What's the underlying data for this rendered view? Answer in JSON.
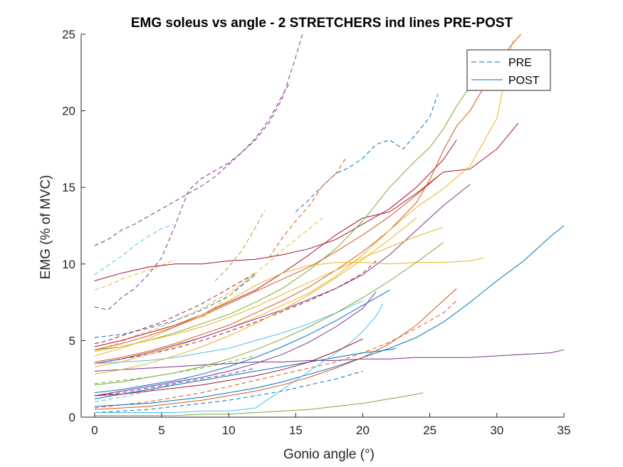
{
  "chart_data": {
    "type": "line",
    "title": "EMG soleus vs angle - 2 STRETCHERS ind lines PRE-POST",
    "xlabel": "Gonio angle (°)",
    "ylabel": "EMG (% of MVC)",
    "xlim": [
      -1,
      35
    ],
    "ylim": [
      0,
      25
    ],
    "xticks": [
      0,
      5,
      10,
      15,
      20,
      25,
      30,
      35
    ],
    "yticks": [
      0,
      5,
      10,
      15,
      20,
      25
    ],
    "grid": false,
    "legend": {
      "placement": "top-right",
      "entries": [
        {
          "label": "PRE",
          "style": "dashed",
          "color": "#0072BD"
        },
        {
          "label": "POST",
          "style": "solid",
          "color": "#0072BD"
        }
      ]
    },
    "series": [
      {
        "style": "dashed",
        "color": "#7E2F8E",
        "x": [
          0,
          1,
          2,
          3,
          4,
          5,
          6,
          7,
          8,
          9,
          10,
          11,
          12,
          13,
          14,
          15,
          15.5
        ],
        "y": [
          11.2,
          11.6,
          12.2,
          12.6,
          13.1,
          13.6,
          14.1,
          14.6,
          15.1,
          15.7,
          16.5,
          17.3,
          18.1,
          19.2,
          20.8,
          23.5,
          25
        ]
      },
      {
        "style": "dashed",
        "color": "#7E2F8E",
        "x": [
          0,
          1,
          2,
          3,
          4,
          5,
          6,
          7,
          8,
          9,
          10,
          11,
          12,
          13,
          14,
          14.6
        ],
        "y": [
          7.2,
          7.0,
          7.8,
          8.4,
          9.3,
          10.4,
          12.5,
          14.8,
          15.6,
          16.1,
          16.6,
          17.3,
          18.2,
          19.4,
          21.0,
          21.9
        ]
      },
      {
        "style": "dashed",
        "color": "#4DBEEE",
        "x": [
          0,
          1,
          2,
          3,
          4,
          5,
          5.9
        ],
        "y": [
          9.3,
          9.9,
          10.5,
          11.2,
          11.8,
          12.3,
          12.6
        ]
      },
      {
        "style": "dashed",
        "color": "#0072BD",
        "x": [
          15,
          16,
          17,
          18,
          19,
          20,
          21,
          22,
          23,
          24,
          25,
          25.6
        ],
        "y": [
          13.4,
          14.2,
          15.1,
          15.9,
          16.3,
          16.9,
          17.8,
          18.1,
          17.5,
          18.5,
          19.6,
          21.1
        ]
      },
      {
        "style": "dashed",
        "color": "#D95319",
        "x": [
          13,
          14,
          15,
          16,
          17,
          18,
          18.8
        ],
        "y": [
          10.4,
          11.7,
          12.8,
          13.8,
          15.1,
          15.9,
          17.0
        ]
      },
      {
        "style": "dashed",
        "color": "#77AC30",
        "x": [
          9,
          10,
          11,
          12,
          12.7
        ],
        "y": [
          8.9,
          9.8,
          10.9,
          12.4,
          13.5
        ]
      },
      {
        "style": "dashed",
        "color": "#EDB120",
        "x": [
          0,
          1,
          2,
          3,
          4,
          5,
          6,
          7,
          8,
          9,
          10,
          11,
          12,
          13,
          14,
          15,
          16,
          17
        ],
        "y": [
          4.3,
          4.6,
          4.9,
          5.3,
          5.6,
          5.9,
          6.3,
          6.7,
          7.1,
          7.6,
          8.1,
          8.7,
          9.4,
          10.1,
          10.9,
          11.6,
          12.3,
          13.0
        ]
      },
      {
        "style": "dashed",
        "color": "#A2142F",
        "x": [
          0,
          1,
          2,
          3,
          4,
          5,
          6,
          7,
          8,
          9,
          10,
          11,
          12
        ],
        "y": [
          4.8,
          5.0,
          5.3,
          5.6,
          5.9,
          6.2,
          6.6,
          7.0,
          7.4,
          7.9,
          8.4,
          8.9,
          9.4
        ]
      },
      {
        "style": "dashed",
        "color": "#EDB120",
        "x": [
          0,
          1,
          2,
          3,
          4,
          5,
          6
        ],
        "y": [
          8.3,
          8.6,
          9.0,
          9.3,
          9.6,
          9.9,
          10.3
        ]
      },
      {
        "style": "dashed",
        "color": "#0072BD",
        "x": [
          0,
          2,
          4,
          6,
          8,
          10,
          12
        ],
        "y": [
          5.2,
          5.4,
          5.8,
          6.3,
          7.0,
          7.9,
          9.3
        ]
      },
      {
        "style": "dashed",
        "color": "#4DBEEE",
        "x": [
          0,
          2,
          4,
          6,
          7
        ],
        "y": [
          1.0,
          1.3,
          1.7,
          2.2,
          2.6
        ]
      },
      {
        "style": "dashed",
        "color": "#77AC30",
        "x": [
          0,
          2,
          4,
          6,
          8,
          10,
          12
        ],
        "y": [
          2.2,
          2.4,
          2.6,
          2.9,
          3.2,
          3.6,
          4.0
        ]
      },
      {
        "style": "dashed",
        "color": "#7E2F8E",
        "x": [
          0,
          2,
          4,
          6,
          8,
          10,
          12
        ],
        "y": [
          1.4,
          1.6,
          1.9,
          2.2,
          2.5,
          2.8,
          3.2
        ]
      },
      {
        "style": "dashed",
        "color": "#D95319",
        "x": [
          0,
          2,
          4,
          6,
          8,
          10,
          12,
          14,
          16,
          18,
          20,
          22,
          24,
          26,
          27
        ],
        "y": [
          0.6,
          0.8,
          1.0,
          1.3,
          1.6,
          2.0,
          2.4,
          2.8,
          3.2,
          3.6,
          4.2,
          4.9,
          5.8,
          6.8,
          7.6
        ]
      },
      {
        "style": "dashed",
        "color": "#0072BD",
        "x": [
          0,
          2,
          4,
          6,
          8,
          10,
          12,
          14,
          16,
          18,
          20
        ],
        "y": [
          0.3,
          0.4,
          0.5,
          0.7,
          0.9,
          1.1,
          1.4,
          1.7,
          2.1,
          2.5,
          3.0
        ]
      },
      {
        "style": "dashed",
        "color": "#A2142F",
        "x": [
          0,
          2,
          4,
          6,
          8,
          10,
          12,
          14,
          16,
          18,
          20,
          21
        ],
        "y": [
          3.5,
          3.8,
          4.1,
          4.5,
          5.0,
          5.6,
          6.2,
          6.9,
          7.6,
          8.4,
          9.4,
          10.2
        ]
      },
      {
        "style": "dashed",
        "color": "#EDB120",
        "x": [
          8,
          9,
          10,
          11,
          12
        ],
        "y": [
          6.5,
          7.2,
          7.9,
          8.7,
          9.5
        ]
      },
      {
        "style": "solid",
        "color": "#A2142F",
        "x": [
          0,
          2,
          4,
          6,
          8,
          10,
          12,
          14,
          16,
          18,
          20,
          22,
          24,
          26,
          27
        ],
        "y": [
          8.9,
          9.4,
          9.8,
          10.0,
          10.0,
          10.2,
          10.3,
          10.6,
          11.0,
          11.6,
          12.6,
          13.6,
          15.0,
          16.8,
          18.1
        ]
      },
      {
        "style": "solid",
        "color": "#A2142F",
        "x": [
          0,
          2,
          4,
          6,
          8,
          10,
          12,
          14,
          16,
          18,
          20,
          22,
          24,
          26,
          28,
          30,
          31.6
        ],
        "y": [
          4.6,
          5.0,
          5.5,
          6.0,
          6.7,
          7.5,
          8.3,
          9.4,
          10.6,
          11.9,
          13.0,
          13.4,
          14.6,
          16.0,
          16.2,
          17.5,
          19.2
        ]
      },
      {
        "style": "solid",
        "color": "#D95319",
        "x": [
          0,
          2,
          4,
          6,
          8,
          10,
          12,
          14,
          16,
          18,
          20,
          22,
          24,
          25,
          26,
          27,
          28,
          29,
          30,
          31,
          31.8
        ],
        "y": [
          3.6,
          3.9,
          4.3,
          4.8,
          5.4,
          6.0,
          6.8,
          7.6,
          8.5,
          9.6,
          10.8,
          12.2,
          14.0,
          15.5,
          17.4,
          19.0,
          20.0,
          21.5,
          23.0,
          24.2,
          25.0
        ]
      },
      {
        "style": "solid",
        "color": "#EDB120",
        "x": [
          0,
          2,
          4,
          6,
          8,
          10,
          12,
          14,
          16,
          18,
          20,
          22,
          24,
          26,
          28,
          30,
          31.2
        ],
        "y": [
          3.3,
          3.6,
          4.1,
          4.6,
          5.2,
          5.8,
          6.5,
          7.3,
          8.1,
          9.2,
          10.6,
          12.2,
          13.7,
          14.9,
          16.4,
          19.5,
          24.6
        ]
      },
      {
        "style": "solid",
        "color": "#77AC30",
        "x": [
          0,
          2,
          4,
          6,
          8,
          10,
          12,
          14,
          16,
          18,
          20,
          22,
          24,
          25,
          26,
          27,
          28
        ],
        "y": [
          4.4,
          4.6,
          5.0,
          5.5,
          6.1,
          6.7,
          7.5,
          8.4,
          9.6,
          11.0,
          12.8,
          15.0,
          16.8,
          17.6,
          18.8,
          20.3,
          21.6
        ]
      },
      {
        "style": "solid",
        "color": "#7E2F8E",
        "x": [
          0,
          2,
          4,
          6,
          8,
          10,
          12,
          14,
          16,
          18,
          20,
          22,
          24,
          26,
          28
        ],
        "y": [
          3.5,
          3.8,
          4.2,
          4.7,
          5.2,
          5.8,
          6.4,
          7.0,
          7.7,
          8.4,
          9.3,
          10.6,
          12.2,
          13.8,
          15.2
        ]
      },
      {
        "style": "solid",
        "color": "#EDB120",
        "x": [
          0,
          2,
          4,
          6,
          8,
          10,
          12,
          14,
          16,
          18,
          20,
          22,
          24,
          26,
          28,
          29
        ],
        "y": [
          4.0,
          4.5,
          5.1,
          5.9,
          6.7,
          7.6,
          8.6,
          9.4,
          9.9,
          10.1,
          10.1,
          10.0,
          10.1,
          10.1,
          10.2,
          10.4
        ]
      },
      {
        "style": "solid",
        "color": "#EDB120",
        "x": [
          0,
          2,
          4,
          6,
          8,
          10,
          12,
          14,
          16,
          18,
          20,
          22,
          24,
          26
        ],
        "y": [
          4.3,
          4.6,
          5.0,
          5.4,
          5.9,
          6.5,
          7.2,
          8.0,
          8.8,
          9.6,
          10.4,
          11.1,
          11.8,
          12.4
        ]
      },
      {
        "style": "solid",
        "color": "#D95319",
        "x": [
          0,
          2,
          4,
          6,
          8,
          10,
          12,
          14,
          16,
          18,
          20,
          22,
          24,
          26
        ],
        "y": [
          4.4,
          4.8,
          5.3,
          5.9,
          6.6,
          7.4,
          8.2,
          9.0,
          9.8,
          10.8,
          11.9,
          13.1,
          14.5,
          16.0
        ]
      },
      {
        "style": "solid",
        "color": "#7E2F8E",
        "x": [
          0,
          2,
          4,
          6,
          8,
          10,
          12,
          14,
          16,
          18,
          20,
          22,
          24,
          26,
          28,
          30,
          32,
          34,
          35
        ],
        "y": [
          3.0,
          3.1,
          3.2,
          3.3,
          3.4,
          3.5,
          3.6,
          3.6,
          3.7,
          3.7,
          3.8,
          3.8,
          3.9,
          3.9,
          3.9,
          4.0,
          4.1,
          4.2,
          4.4
        ]
      },
      {
        "style": "solid",
        "color": "#0072BD",
        "x": [
          0,
          2,
          4,
          6,
          8,
          10,
          12,
          14,
          16,
          18,
          20,
          22,
          24,
          26,
          28,
          30,
          32,
          34,
          35
        ],
        "y": [
          0.7,
          0.8,
          0.9,
          1.1,
          1.3,
          1.6,
          1.9,
          2.3,
          2.8,
          3.3,
          3.9,
          4.5,
          5.2,
          6.2,
          7.5,
          8.9,
          10.2,
          11.8,
          12.5
        ]
      },
      {
        "style": "solid",
        "color": "#0072BD",
        "x": [
          0,
          2,
          4,
          6,
          8,
          10,
          12,
          14,
          16,
          18,
          20,
          22,
          22.5
        ],
        "y": [
          1.2,
          1.5,
          1.8,
          2.1,
          2.4,
          2.7,
          3.0,
          3.3,
          3.6,
          3.9,
          4.2,
          4.4,
          4.5
        ]
      },
      {
        "style": "solid",
        "color": "#4DBEEE",
        "x": [
          0,
          2,
          4,
          6,
          8,
          10,
          11,
          12,
          13,
          14,
          15,
          16,
          17,
          18,
          19,
          20,
          21,
          21.5
        ],
        "y": [
          0.3,
          0.3,
          0.3,
          0.3,
          0.4,
          0.4,
          0.5,
          0.6,
          1.2,
          1.8,
          2.4,
          3.0,
          3.6,
          4.2,
          4.8,
          5.6,
          6.6,
          7.4
        ]
      },
      {
        "style": "solid",
        "color": "#77AC30",
        "x": [
          0,
          2,
          4,
          6,
          8,
          10,
          12,
          14,
          16,
          18,
          20,
          22,
          24,
          24.5
        ],
        "y": [
          0.1,
          0.1,
          0.1,
          0.1,
          0.2,
          0.2,
          0.3,
          0.4,
          0.5,
          0.7,
          0.9,
          1.2,
          1.5,
          1.6
        ]
      },
      {
        "style": "solid",
        "color": "#7E2F8E",
        "x": [
          0,
          2,
          4,
          6,
          8,
          10,
          12,
          14,
          16,
          18,
          20,
          21
        ],
        "y": [
          1.4,
          1.7,
          2.0,
          2.3,
          2.6,
          3.0,
          3.5,
          4.1,
          4.9,
          5.9,
          7.1,
          8.2
        ]
      },
      {
        "style": "solid",
        "color": "#D95319",
        "x": [
          0,
          2,
          4,
          6,
          8,
          10,
          12,
          14,
          16,
          18,
          20,
          22,
          24,
          26,
          27
        ],
        "y": [
          0.5,
          0.6,
          0.7,
          0.9,
          1.1,
          1.4,
          1.7,
          2.1,
          2.6,
          3.2,
          3.9,
          4.8,
          6.0,
          7.6,
          8.4
        ]
      },
      {
        "style": "solid",
        "color": "#A2142F",
        "x": [
          0,
          2,
          4,
          6,
          8,
          10,
          12,
          14,
          16,
          18,
          20
        ],
        "y": [
          1.4,
          1.5,
          1.7,
          1.9,
          2.1,
          2.4,
          2.7,
          3.1,
          3.6,
          4.3,
          5.1
        ]
      },
      {
        "style": "solid",
        "color": "#4DBEEE",
        "x": [
          0,
          2,
          4,
          6,
          8,
          10,
          12,
          14,
          16,
          18,
          20
        ],
        "y": [
          3.5,
          3.6,
          3.7,
          3.9,
          4.2,
          4.5,
          5.0,
          5.5,
          6.1,
          6.8,
          7.6
        ]
      },
      {
        "style": "solid",
        "color": "#0072BD",
        "x": [
          0,
          2,
          4,
          6,
          8,
          10,
          12,
          14,
          16,
          18,
          20,
          22
        ],
        "y": [
          1.6,
          1.8,
          2.1,
          2.4,
          2.8,
          3.3,
          3.9,
          4.6,
          5.4,
          6.3,
          7.3,
          8.3
        ]
      },
      {
        "style": "solid",
        "color": "#77AC30",
        "x": [
          0,
          2,
          4,
          6,
          8,
          10,
          12,
          14,
          16,
          18,
          20,
          22,
          24,
          26
        ],
        "y": [
          2.1,
          2.3,
          2.6,
          2.9,
          3.3,
          3.8,
          4.4,
          5.1,
          5.9,
          6.8,
          7.8,
          8.9,
          10.1,
          11.4
        ]
      },
      {
        "style": "solid",
        "color": "#EDB120",
        "x": [
          0,
          2,
          4,
          6,
          8,
          10,
          12,
          14,
          16,
          18,
          20,
          22,
          24
        ],
        "y": [
          2.8,
          3.1,
          3.5,
          4.0,
          4.6,
          5.3,
          6.1,
          7.0,
          8.0,
          9.1,
          10.3,
          11.6,
          13.0
        ]
      }
    ]
  }
}
